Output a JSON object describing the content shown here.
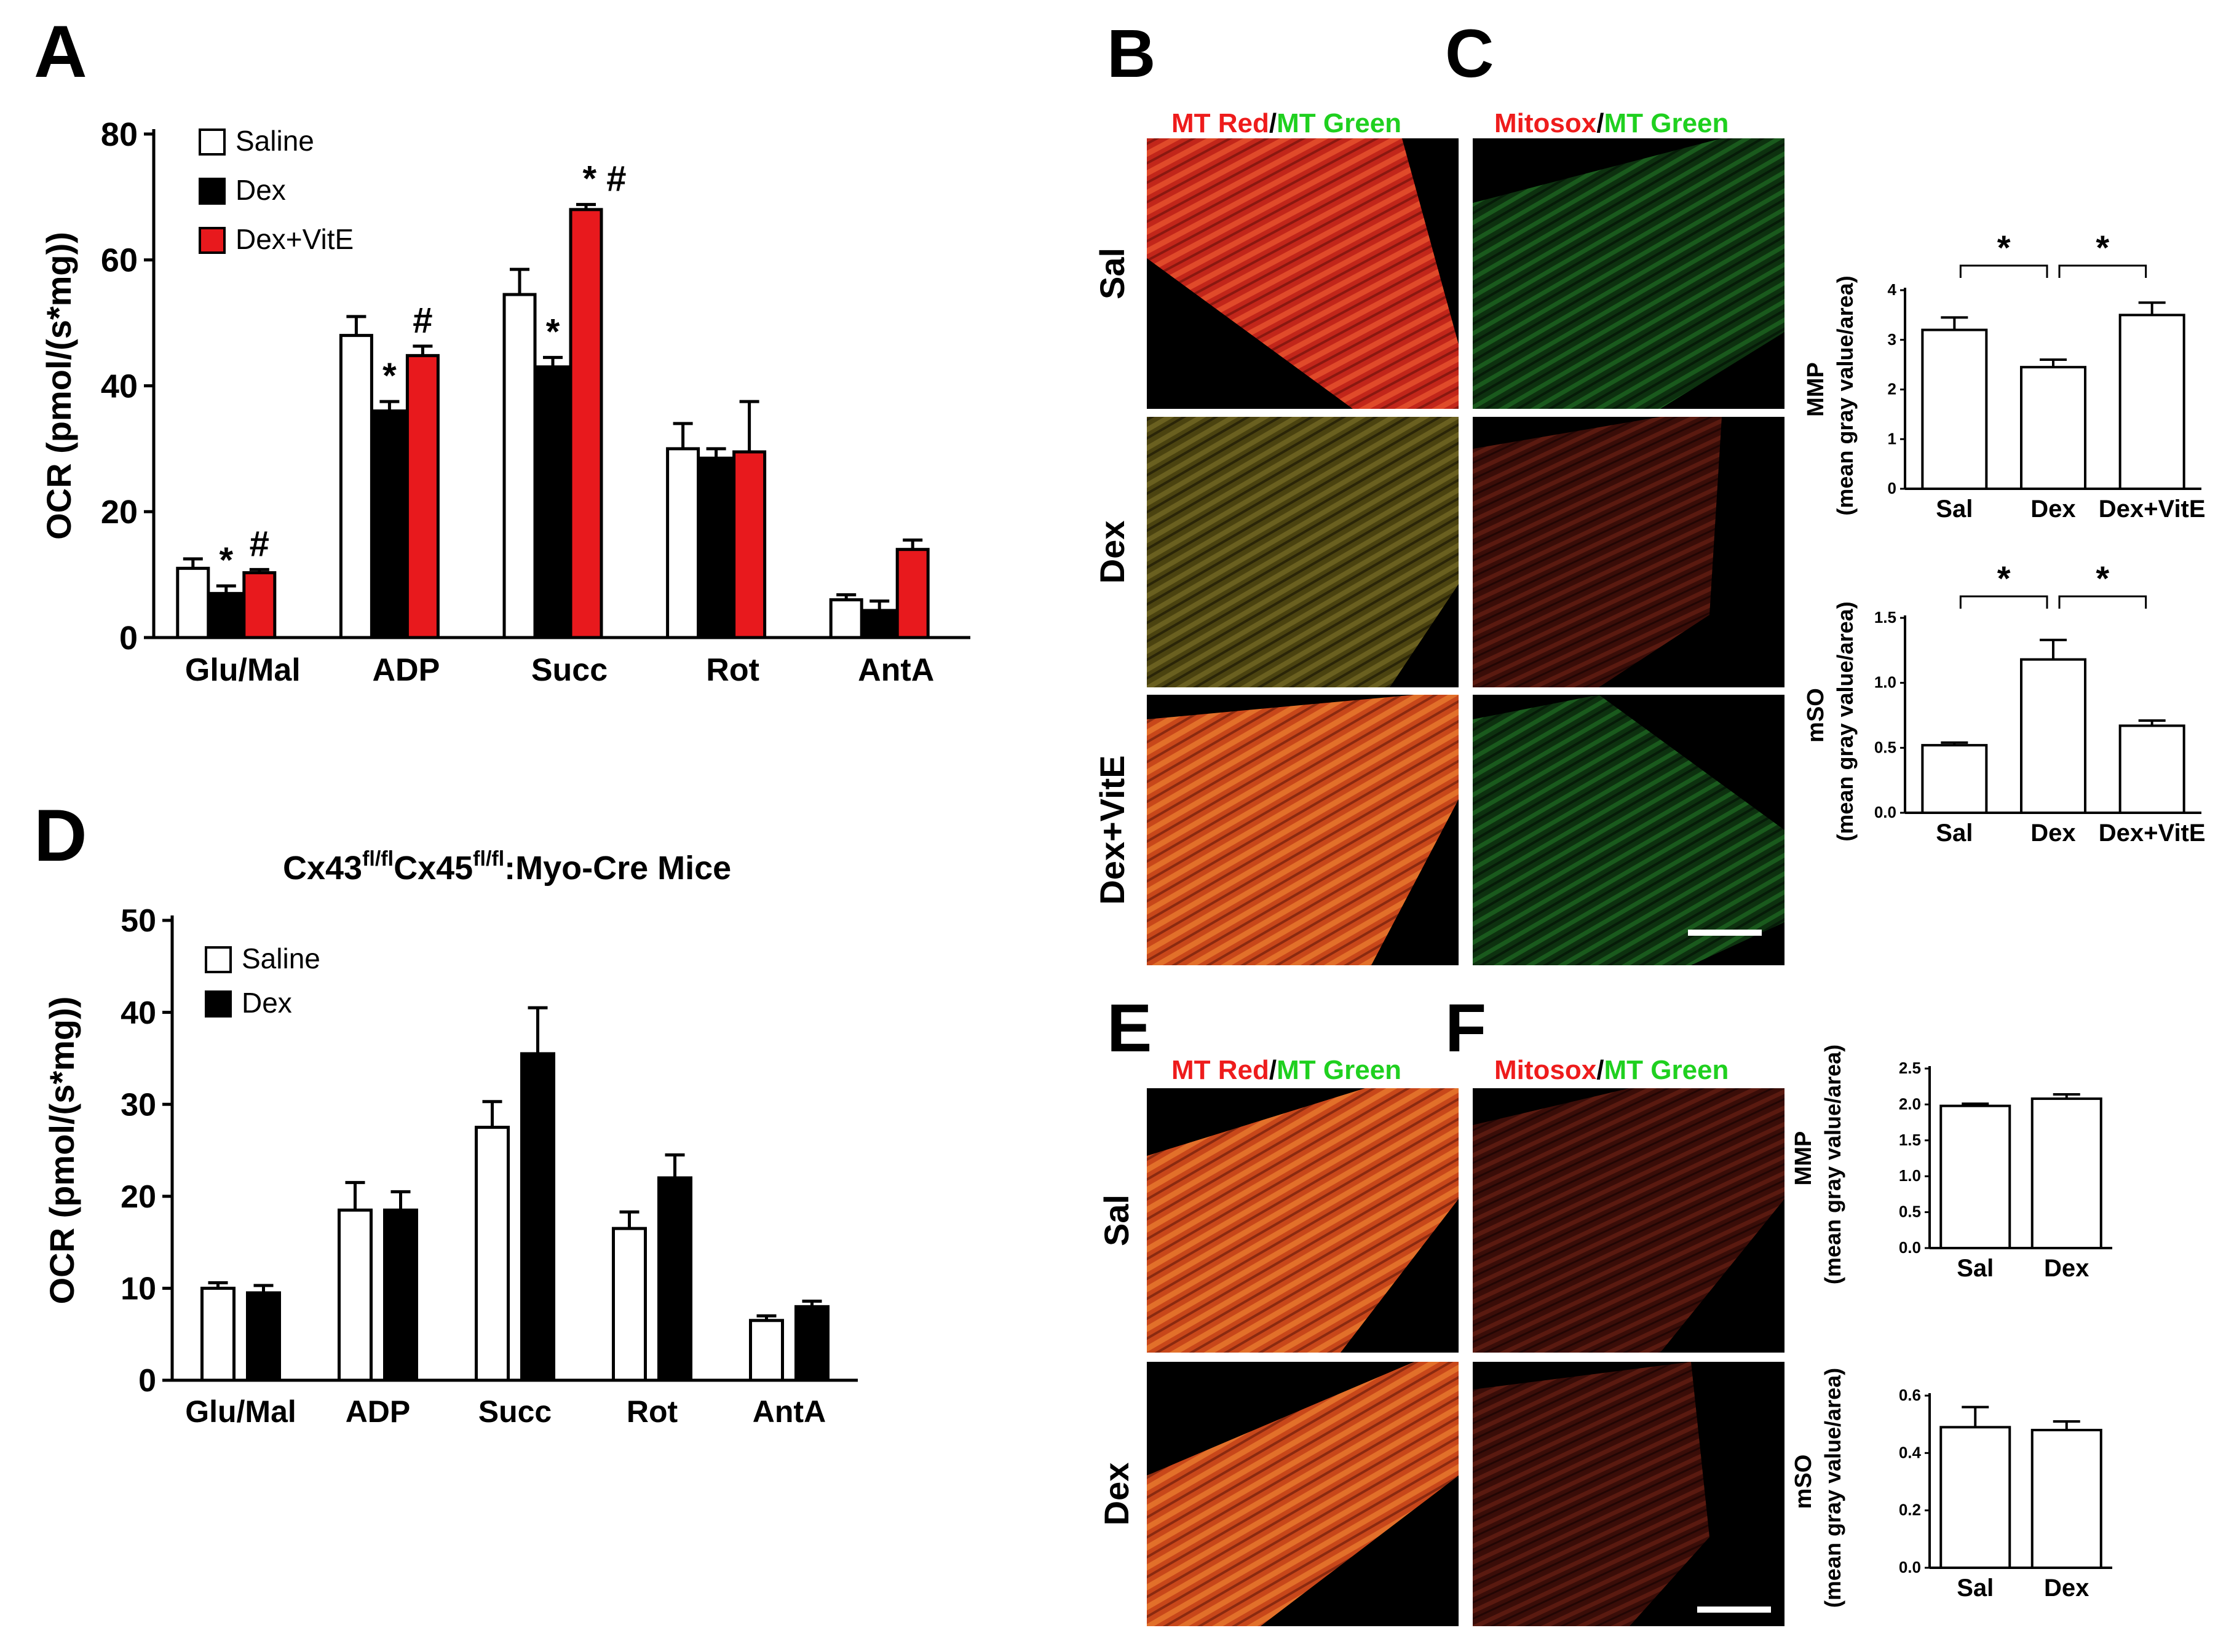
{
  "colors": {
    "saline": "#ffffff",
    "dex": "#000000",
    "dexvite": "#e8191d",
    "mt_red": "#ee1c1c",
    "mt_green": "#1fd01f"
  },
  "panels": {
    "A": "A",
    "B": "B",
    "C": "C",
    "D": "D",
    "E": "E",
    "F": "F"
  },
  "chart_data": [
    {
      "id": "A",
      "type": "bar",
      "ylabel": "OCR (pmol/(s*mg))",
      "ylim": [
        0,
        80
      ],
      "yticks": [
        "0",
        "20",
        "40",
        "60",
        "80"
      ],
      "categories": [
        "Glu/Mal",
        "ADP",
        "Succ",
        "Rot",
        "AntA"
      ],
      "legend": [
        "Saline",
        "Dex",
        "Dex+VitE"
      ],
      "series": [
        {
          "name": "Saline",
          "values": [
            11,
            48,
            54.5,
            30,
            6
          ],
          "err": [
            1.5,
            3,
            4,
            4,
            0.8
          ]
        },
        {
          "name": "Dex",
          "values": [
            7,
            36,
            43,
            28.5,
            4.3
          ],
          "err": [
            1.2,
            1.5,
            1.5,
            1.5,
            1.5
          ]
        },
        {
          "name": "Dex+VitE",
          "values": [
            10.3,
            44.8,
            68,
            29.5,
            14
          ],
          "err": [
            0.5,
            1.5,
            0.8,
            8,
            1.5
          ]
        }
      ],
      "annotations": [
        {
          "series": 1,
          "cat": 0,
          "text": "*"
        },
        {
          "series": 2,
          "cat": 0,
          "text": "#"
        },
        {
          "series": 1,
          "cat": 1,
          "text": "*"
        },
        {
          "series": 2,
          "cat": 1,
          "text": "#"
        },
        {
          "series": 1,
          "cat": 2,
          "text": "*"
        },
        {
          "series": 2,
          "cat": 2,
          "text": "* #"
        }
      ]
    },
    {
      "id": "D",
      "type": "bar",
      "title_parts": [
        "Cx43",
        "fl/fl",
        "Cx45",
        "fl/fl",
        ":Myo-Cre Mice"
      ],
      "ylabel": "OCR (pmol/(s*mg))",
      "ylim": [
        0,
        50
      ],
      "yticks": [
        "0",
        "10",
        "20",
        "30",
        "40",
        "50"
      ],
      "categories": [
        "Glu/Mal",
        "ADP",
        "Succ",
        "Rot",
        "AntA"
      ],
      "legend": [
        "Saline",
        "Dex"
      ],
      "series": [
        {
          "name": "Saline",
          "values": [
            10,
            18.5,
            27.5,
            16.5,
            6.5
          ],
          "err": [
            0.6,
            3,
            2.8,
            1.8,
            0.5
          ]
        },
        {
          "name": "Dex",
          "values": [
            9.5,
            18.5,
            35.5,
            22,
            8
          ],
          "err": [
            0.8,
            2,
            5,
            2.5,
            0.6
          ]
        }
      ]
    },
    {
      "id": "C-MMP",
      "type": "bar",
      "ylabel": "MMP",
      "ylabel2": "(mean gray value/area)",
      "ylim": [
        0,
        4
      ],
      "yticks": [
        "0",
        "1",
        "2",
        "3",
        "4"
      ],
      "categories": [
        "Sal",
        "Dex",
        "Dex+VitE"
      ],
      "values": [
        3.2,
        2.45,
        3.5
      ],
      "err": [
        0.25,
        0.15,
        0.25
      ],
      "brackets": [
        {
          "from": 0,
          "to": 1,
          "text": "*"
        },
        {
          "from": 1,
          "to": 2,
          "text": "*"
        }
      ]
    },
    {
      "id": "C-mSO",
      "type": "bar",
      "ylabel": "mSO",
      "ylabel2": "(mean gray value/area)",
      "ylim": [
        0,
        1.5
      ],
      "yticks": [
        "0.0",
        "0.5",
        "1.0",
        "1.5"
      ],
      "categories": [
        "Sal",
        "Dex",
        "Dex+VitE"
      ],
      "values": [
        0.52,
        1.18,
        0.67
      ],
      "err": [
        0.02,
        0.15,
        0.04
      ],
      "brackets": [
        {
          "from": 0,
          "to": 1,
          "text": "*"
        },
        {
          "from": 1,
          "to": 2,
          "text": "*"
        }
      ]
    },
    {
      "id": "F-MMP",
      "type": "bar",
      "ylabel": "MMP",
      "ylabel2": "(mean gray value/area)",
      "ylim": [
        0,
        2.5
      ],
      "yticks": [
        "0.0",
        "0.5",
        "1.0",
        "1.5",
        "2.0",
        "2.5"
      ],
      "categories": [
        "Sal",
        "Dex"
      ],
      "values": [
        1.98,
        2.08
      ],
      "err": [
        0.03,
        0.06
      ]
    },
    {
      "id": "F-mSO",
      "type": "bar",
      "ylabel": "mSO",
      "ylabel2": "(mean gray value/area)",
      "ylim": [
        0,
        0.6
      ],
      "yticks": [
        "0.0",
        "0.2",
        "0.4",
        "0.6"
      ],
      "categories": [
        "Sal",
        "Dex"
      ],
      "values": [
        0.49,
        0.48
      ],
      "err": [
        0.07,
        0.03
      ]
    }
  ],
  "micrographs": {
    "B_header": [
      "MT Red",
      "/",
      "MT Green"
    ],
    "C_header": [
      "Mitosox",
      "/",
      "MT Green"
    ],
    "E_header": [
      "MT Red",
      "/",
      "MT Green"
    ],
    "F_header": [
      "Mitosox",
      "/",
      "MT Green"
    ],
    "rows_BC": [
      "Sal",
      "Dex",
      "Dex+VitE"
    ],
    "rows_EF": [
      "Sal",
      "Dex"
    ]
  }
}
